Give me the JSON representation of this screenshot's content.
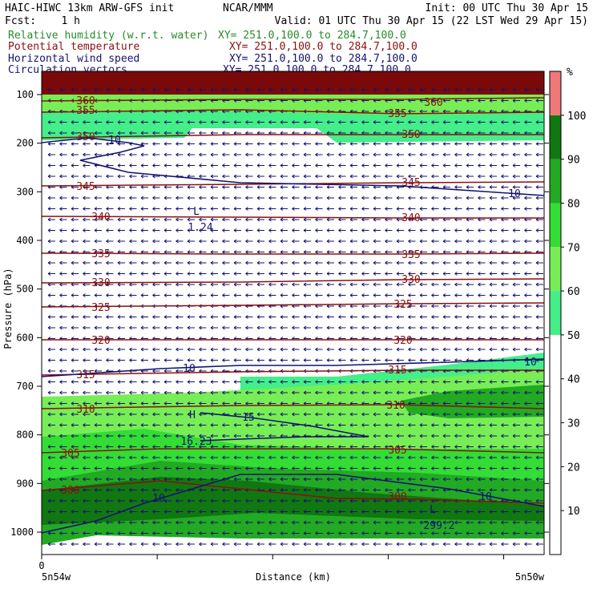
{
  "header": {
    "title_left": "HAIC-HIWC 13km ARW-GFS init",
    "title_center": "NCAR/MMM",
    "init": "Init: 00 UTC Thu 30 Apr 15",
    "fcst": "Fcst:    1 h",
    "valid": "Valid: 01 UTC Thu 30 Apr 15 (22 LST Wed 29 Apr 15)"
  },
  "fields": [
    {
      "name": "Relative humidity (w.r.t. water)",
      "xy": "XY= 251.0,100.0 to 284.7,100.0",
      "color": "#2a8a2a"
    },
    {
      "name": "Potential temperature",
      "xy": "XY= 251.0,100.0 to 284.7,100.0",
      "color": "#8b1010"
    },
    {
      "name": "Horizontal wind speed",
      "xy": "XY= 251.0,100.0 to 284.7,100.0",
      "color": "#14146e"
    },
    {
      "name": "Circulation vectors",
      "xy": "XY= 251.0,100.0 to 284.7,100.0",
      "color": "#14146e"
    }
  ],
  "colorbar": {
    "unit": "%",
    "levels": [
      10,
      20,
      30,
      40,
      50,
      60,
      70,
      80,
      90,
      100
    ],
    "colors": [
      "#ffffff",
      "#ffffff",
      "#ffffff",
      "#ffffff",
      "#ffffff",
      "#44ee88",
      "#77ee55",
      "#33dd33",
      "#22aa22",
      "#117711",
      "#f07878"
    ]
  },
  "chart_data": {
    "type": "contour",
    "xlabel": "Distance (km)",
    "ylabel": "Pressure (hPa)",
    "x_start_label": "5n54w",
    "x_end_label": "5n50w",
    "x_zero_label": "0",
    "y_ticks": [
      100,
      200,
      300,
      400,
      500,
      600,
      700,
      800,
      900,
      1000
    ],
    "ylim": [
      1050,
      70
    ],
    "theta_contours": [
      {
        "value": 300,
        "label": "300"
      },
      {
        "value": 305,
        "label": "305"
      },
      {
        "value": 310,
        "label": "310"
      },
      {
        "value": 315,
        "label": "315"
      },
      {
        "value": 320,
        "label": "320"
      },
      {
        "value": 325,
        "label": "325"
      },
      {
        "value": 330,
        "label": "330"
      },
      {
        "value": 335,
        "label": "335"
      },
      {
        "value": 340,
        "label": "340"
      },
      {
        "value": 345,
        "label": "345"
      },
      {
        "value": 350,
        "label": "350"
      },
      {
        "value": 355,
        "label": "355"
      },
      {
        "value": 360,
        "label": "360"
      }
    ],
    "wind_contours": [
      {
        "value": 10,
        "label": "10"
      },
      {
        "value": 15,
        "label": "15"
      }
    ],
    "annotations": [
      {
        "text": "L",
        "note": "wind minimum"
      },
      {
        "text": "1.24"
      },
      {
        "text": "H",
        "note": "wind maximum"
      },
      {
        "text": "16.23"
      },
      {
        "text": "L"
      },
      {
        "text": "299.2"
      }
    ]
  }
}
